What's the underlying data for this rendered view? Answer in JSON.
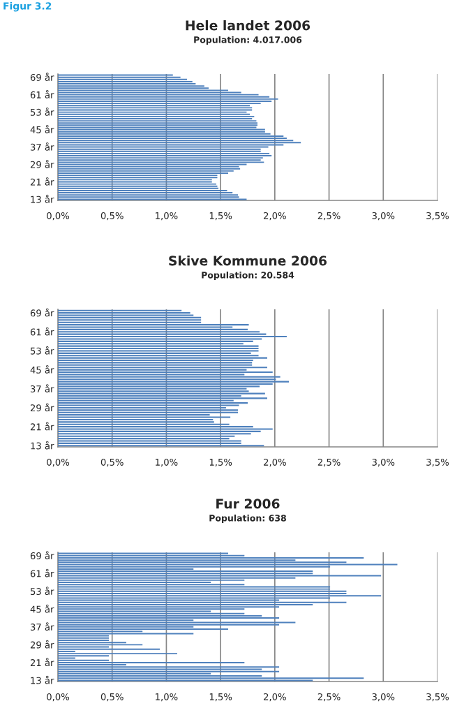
{
  "chart_data": [
    {
      "type": "bar",
      "orientation": "horizontal",
      "title": "Hele landet 2006",
      "subtitle": "Population: 4.017.006",
      "annotations": [
        "Figur 3.2"
      ],
      "categories": [
        null,
        "69 år",
        null,
        null,
        null,
        null,
        null,
        null,
        null,
        "61 år",
        null,
        null,
        null,
        null,
        null,
        null,
        null,
        "53 år",
        null,
        null,
        null,
        null,
        null,
        null,
        null,
        "45 år",
        null,
        null,
        null,
        null,
        null,
        null,
        null,
        "37 år",
        null,
        null,
        null,
        null,
        null,
        null,
        null,
        "29 år",
        null,
        null,
        null,
        null,
        null,
        null,
        null,
        "21 år",
        null,
        null,
        null,
        null,
        null,
        null,
        null,
        "13 år"
      ],
      "series": [
        {
          "color": "#4f81bd",
          "values": [
            1.06,
            1.13,
            1.19,
            1.24,
            1.27,
            1.35,
            1.39,
            1.57,
            1.69,
            1.85,
            1.95,
            2.03,
            1.97,
            1.87,
            1.77,
            1.79,
            1.79,
            1.74,
            1.77,
            1.81,
            1.79,
            1.83,
            1.84,
            1.84,
            1.83,
            1.91,
            1.91,
            1.96,
            2.08,
            2.11,
            2.17,
            2.24,
            2.08,
            1.94,
            1.87,
            1.87,
            1.95,
            1.97,
            1.89,
            1.87,
            1.9,
            1.74,
            1.67,
            1.68,
            1.62,
            1.57,
            1.47,
            1.47,
            1.42,
            1.42,
            1.46,
            1.47,
            1.48,
            1.56,
            1.61,
            1.66,
            1.67,
            1.74
          ]
        }
      ],
      "xlim": [
        0,
        3.5
      ],
      "xticks": [
        {
          "value": 0,
          "label": "0,0%"
        },
        {
          "value": 0.5,
          "label": "0,5%"
        },
        {
          "value": 1,
          "label": "1,0%"
        },
        {
          "value": 1.5,
          "label": "1,5%"
        },
        {
          "value": 2,
          "label": "2,0%"
        },
        {
          "value": 2.5,
          "label": "2,5%"
        },
        {
          "value": 3,
          "label": "3,0%"
        },
        {
          "value": 3.5,
          "label": "3,5%"
        }
      ],
      "grid": "x"
    },
    {
      "type": "bar",
      "orientation": "horizontal",
      "title": "Skive Kommune 2006",
      "subtitle": "Population: 20.584",
      "categories": [
        null,
        "69 år",
        null,
        null,
        null,
        null,
        null,
        null,
        null,
        "61 år",
        null,
        null,
        null,
        null,
        null,
        null,
        null,
        "53 år",
        null,
        null,
        null,
        null,
        null,
        null,
        null,
        "45 år",
        null,
        null,
        null,
        null,
        null,
        null,
        null,
        "37 år",
        null,
        null,
        null,
        null,
        null,
        null,
        null,
        "29 år",
        null,
        null,
        null,
        null,
        null,
        null,
        null,
        "21 år",
        null,
        null,
        null,
        null,
        null,
        null,
        null,
        "13 år"
      ],
      "series": [
        {
          "color": "#4f81bd",
          "values": [
            1.14,
            1.22,
            1.25,
            1.32,
            1.32,
            1.32,
            1.76,
            1.61,
            1.75,
            1.86,
            1.92,
            2.11,
            1.88,
            1.8,
            1.71,
            1.85,
            1.85,
            1.85,
            1.78,
            1.85,
            1.93,
            1.8,
            1.79,
            1.79,
            1.93,
            1.74,
            1.98,
            1.72,
            2.05,
            2.01,
            2.13,
            1.98,
            1.86,
            1.74,
            1.76,
            1.91,
            1.69,
            1.93,
            1.62,
            1.75,
            1.67,
            1.55,
            1.66,
            1.66,
            1.4,
            1.59,
            1.43,
            1.44,
            1.58,
            1.8,
            1.98,
            1.87,
            1.78,
            1.63,
            1.58,
            1.69,
            1.69,
            1.9
          ]
        }
      ],
      "xlim": [
        0,
        3.5
      ],
      "xticks": [
        {
          "value": 0,
          "label": "0,0%"
        },
        {
          "value": 0.5,
          "label": "0,5%"
        },
        {
          "value": 1,
          "label": "1,0%"
        },
        {
          "value": 1.5,
          "label": "1,5%"
        },
        {
          "value": 2,
          "label": "2,0%"
        },
        {
          "value": 2.5,
          "label": "2,5%"
        },
        {
          "value": 3,
          "label": "3,0%"
        },
        {
          "value": 3.5,
          "label": "3,5%"
        }
      ],
      "grid": "x"
    },
    {
      "type": "bar",
      "orientation": "horizontal",
      "title": "Fur 2006",
      "subtitle": "Population: 638",
      "categories": [
        null,
        "69 år",
        null,
        null,
        null,
        null,
        null,
        null,
        null,
        "61 år",
        null,
        null,
        null,
        null,
        null,
        null,
        null,
        "53 år",
        null,
        null,
        null,
        null,
        null,
        null,
        null,
        "45 år",
        null,
        null,
        null,
        null,
        null,
        null,
        null,
        "37 år",
        null,
        null,
        null,
        null,
        null,
        null,
        null,
        "29 år",
        null,
        null,
        null,
        null,
        null,
        null,
        null,
        "21 år",
        null,
        null,
        null,
        null,
        null,
        null,
        null,
        "13 år"
      ],
      "series": [
        {
          "color": "#4f81bd",
          "values": [
            1.57,
            1.72,
            2.82,
            2.19,
            2.66,
            3.13,
            2.51,
            1.25,
            2.35,
            2.35,
            2.98,
            2.19,
            1.72,
            1.41,
            1.72,
            2.51,
            2.51,
            2.66,
            2.66,
            2.98,
            2.51,
            2.04,
            2.66,
            2.35,
            2.04,
            1.72,
            1.41,
            1.72,
            1.88,
            2.04,
            1.25,
            2.19,
            2.04,
            1.25,
            1.57,
            0.78,
            1.25,
            0.47,
            0.47,
            0.47,
            0.63,
            0.78,
            0.47,
            0.94,
            0.16,
            1.1,
            0.47,
            0.16,
            0.47,
            1.72,
            0.63,
            2.04,
            1.88,
            2.04,
            1.41,
            1.88,
            2.82,
            2.35
          ]
        }
      ],
      "xlim": [
        0,
        3.5
      ],
      "xticks": [
        {
          "value": 0,
          "label": "0,0%"
        },
        {
          "value": 0.5,
          "label": "0,5%"
        },
        {
          "value": 1,
          "label": "1,0%"
        },
        {
          "value": 1.5,
          "label": "1,5%"
        },
        {
          "value": 2,
          "label": "2,0%"
        },
        {
          "value": 2.5,
          "label": "2,5%"
        },
        {
          "value": 3,
          "label": "3,0%"
        },
        {
          "value": 3.5,
          "label": "3,5%"
        }
      ],
      "grid": "x"
    }
  ]
}
